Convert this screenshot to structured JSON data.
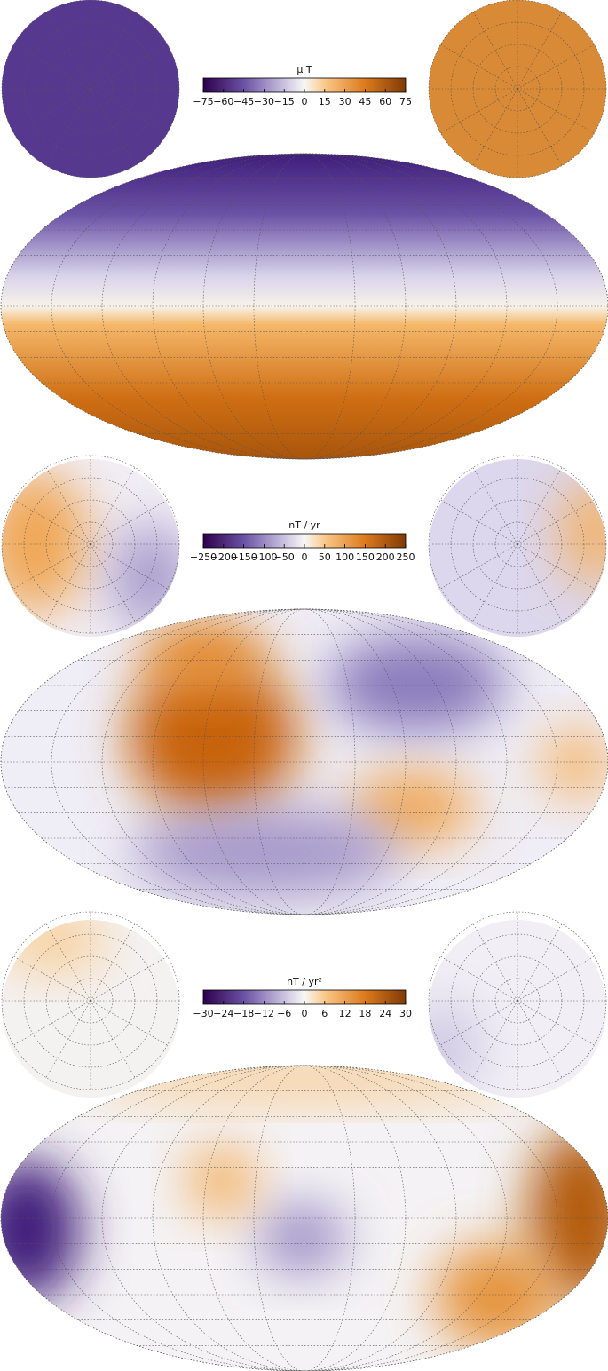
{
  "panels": [
    {
      "colorbar": {
        "label": "μ T",
        "lim": [
          -75,
          75
        ],
        "ticks": [
          {
            "value": -75,
            "label": "−75"
          },
          {
            "value": -60,
            "label": "−60"
          },
          {
            "value": -45,
            "label": "−45"
          },
          {
            "value": -30,
            "label": "−30"
          },
          {
            "value": -15,
            "label": "−15"
          },
          0,
          15,
          30,
          45,
          60,
          75
        ]
      }
    },
    {
      "colorbar": {
        "label": "nT / yr",
        "lim": [
          -250,
          250
        ],
        "ticks": [
          {
            "value": -250,
            "label": "−250"
          },
          {
            "value": -200,
            "label": "−200"
          },
          {
            "value": -150,
            "label": "−150"
          },
          {
            "value": -100,
            "label": "−100"
          },
          {
            "value": -50,
            "label": "−50"
          },
          0,
          50,
          100,
          150,
          200,
          250
        ]
      }
    },
    {
      "colorbar": {
        "label": "nT / yr²",
        "lim": [
          -30,
          30
        ],
        "ticks": [
          {
            "value": -30,
            "label": "−30"
          },
          {
            "value": -24,
            "label": "−24"
          },
          {
            "value": -18,
            "label": "−18"
          },
          {
            "value": -12,
            "label": "−12"
          },
          {
            "value": -6,
            "label": "−6"
          },
          0,
          6,
          12,
          18,
          24,
          30
        ]
      }
    }
  ]
}
